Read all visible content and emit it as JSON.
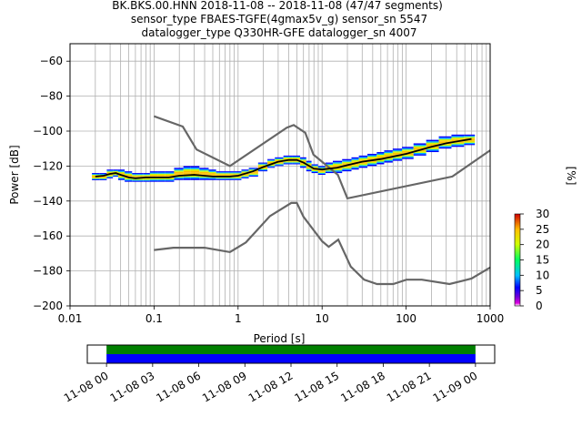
{
  "title_lines": [
    "BK.BKS.00.HNN   2018-11-08 -- 2018-11-08  (47/47 segments)",
    "sensor_type FBAES-TGFE(4gmax5v_g) sensor_sn 5547",
    "datalogger_type Q330HR-GFE datalogger_sn 4007"
  ],
  "chart_data": [
    {
      "type": "heatmap",
      "title": "BK.BKS.00.HNN   2018-11-08 -- 2018-11-08  (47/47 segments)",
      "xlabel": "Period [s]",
      "ylabel": "Power [dB]",
      "xscale": "log",
      "xlim": [
        0.01,
        1000
      ],
      "ylim": [
        -200,
        -50
      ],
      "x_tick_labels": [
        "0.01",
        "0.1",
        "1",
        "10",
        "100",
        "1000"
      ],
      "y_tick_labels": [
        "−60",
        "−80",
        "−100",
        "−120",
        "−140",
        "−160",
        "−180",
        "−200"
      ],
      "y_ticks": [
        -60,
        -80,
        -100,
        -120,
        -140,
        -160,
        -180,
        -200
      ],
      "grid": true,
      "colorbar": {
        "label": "[%]",
        "range": [
          0,
          30
        ],
        "tick_labels": [
          "0",
          "5",
          "10",
          "15",
          "20",
          "25",
          "30"
        ],
        "ticks": [
          0,
          5,
          10,
          15,
          20,
          25,
          30
        ]
      },
      "psd_bins": [
        {
          "period": 0.02,
          "median": -126,
          "low": -128,
          "high": -124
        },
        {
          "period": 0.025,
          "median": -125.5,
          "low": -128,
          "high": -124
        },
        {
          "period": 0.03,
          "median": -124.5,
          "low": -127,
          "high": -122
        },
        {
          "period": 0.035,
          "median": -124,
          "low": -126,
          "high": -122
        },
        {
          "period": 0.04,
          "median": -125,
          "low": -128,
          "high": -122
        },
        {
          "period": 0.05,
          "median": -126.5,
          "low": -129,
          "high": -123
        },
        {
          "period": 0.06,
          "median": -127,
          "low": -129,
          "high": -124
        },
        {
          "period": 0.07,
          "median": -127,
          "low": -129,
          "high": -124
        },
        {
          "period": 0.08,
          "median": -126.5,
          "low": -129,
          "high": -124
        },
        {
          "period": 0.1,
          "median": -126.5,
          "low": -129,
          "high": -123
        },
        {
          "period": 0.12,
          "median": -126.5,
          "low": -129,
          "high": -123
        },
        {
          "period": 0.15,
          "median": -126.5,
          "low": -129,
          "high": -123
        },
        {
          "period": 0.2,
          "median": -125.5,
          "low": -128,
          "high": -121
        },
        {
          "period": 0.25,
          "median": -125.5,
          "low": -128,
          "high": -120
        },
        {
          "period": 0.3,
          "median": -125,
          "low": -128,
          "high": -120
        },
        {
          "period": 0.4,
          "median": -125.5,
          "low": -128,
          "high": -121
        },
        {
          "period": 0.5,
          "median": -126,
          "low": -128,
          "high": -122
        },
        {
          "period": 0.6,
          "median": -126.5,
          "low": -128,
          "high": -123
        },
        {
          "period": 0.8,
          "median": -126,
          "low": -128,
          "high": -123
        },
        {
          "period": 1.0,
          "median": -125.5,
          "low": -128,
          "high": -123
        },
        {
          "period": 1.2,
          "median": -124.5,
          "low": -127,
          "high": -122
        },
        {
          "period": 1.5,
          "median": -123,
          "low": -126,
          "high": -121
        },
        {
          "period": 2.0,
          "median": -120.5,
          "low": -123,
          "high": -118
        },
        {
          "period": 2.5,
          "median": -119,
          "low": -121,
          "high": -116
        },
        {
          "period": 3.0,
          "median": -117.5,
          "low": -120,
          "high": -115
        },
        {
          "period": 4.0,
          "median": -116.5,
          "low": -119,
          "high": -114
        },
        {
          "period": 5.0,
          "median": -116.5,
          "low": -119,
          "high": -114
        },
        {
          "period": 6.0,
          "median": -118,
          "low": -121,
          "high": -115
        },
        {
          "period": 7.0,
          "median": -120,
          "low": -123,
          "high": -117
        },
        {
          "period": 8.0,
          "median": -121.5,
          "low": -124,
          "high": -119
        },
        {
          "period": 10.0,
          "median": -122,
          "low": -125,
          "high": -120
        },
        {
          "period": 12.0,
          "median": -121.5,
          "low": -124,
          "high": -118
        },
        {
          "period": 15.0,
          "median": -121,
          "low": -124,
          "high": -117
        },
        {
          "period": 20.0,
          "median": -119.5,
          "low": -123,
          "high": -116
        },
        {
          "period": 25.0,
          "median": -118.5,
          "low": -122,
          "high": -115
        },
        {
          "period": 30.0,
          "median": -117.5,
          "low": -121,
          "high": -114
        },
        {
          "period": 40.0,
          "median": -116.5,
          "low": -120,
          "high": -113
        },
        {
          "period": 50.0,
          "median": -116,
          "low": -119,
          "high": -112
        },
        {
          "period": 60.0,
          "median": -115,
          "low": -118,
          "high": -111
        },
        {
          "period": 80.0,
          "median": -114,
          "low": -117,
          "high": -110
        },
        {
          "period": 100.0,
          "median": -113,
          "low": -116,
          "high": -109
        },
        {
          "period": 150.0,
          "median": -111,
          "low": -114,
          "high": -107
        },
        {
          "period": 200.0,
          "median": -109,
          "low": -112,
          "high": -105
        },
        {
          "period": 300.0,
          "median": -107,
          "low": -110,
          "high": -103
        },
        {
          "period": 400.0,
          "median": -106,
          "low": -109,
          "high": -102
        },
        {
          "period": 600.0,
          "median": -104.5,
          "low": -108,
          "high": -102
        }
      ],
      "noise_models": [
        {
          "points": [
            [
              0.1,
              -91.5
            ],
            [
              0.22,
              -97.4
            ],
            [
              0.32,
              -110.5
            ],
            [
              0.8,
              -120
            ],
            [
              3.8,
              -98
            ],
            [
              4.6,
              -96.5
            ],
            [
              6.3,
              -101
            ],
            [
              7.9,
              -113.5
            ],
            [
              15.4,
              -125
            ],
            [
              20,
              -138.5
            ],
            [
              354.8,
              -126
            ],
            [
              1000,
              -111
            ]
          ]
        },
        {
          "points": [
            [
              0.1,
              -168
            ],
            [
              0.17,
              -166.7
            ],
            [
              0.4,
              -166.7
            ],
            [
              0.8,
              -169.2
            ],
            [
              1.24,
              -163.7
            ],
            [
              2.4,
              -148.6
            ],
            [
              4.3,
              -141.1
            ],
            [
              5.0,
              -141.1
            ],
            [
              6.0,
              -149
            ],
            [
              10,
              -163
            ],
            [
              12,
              -166.2
            ],
            [
              15.6,
              -162.1
            ],
            [
              21.9,
              -177.5
            ],
            [
              31.6,
              -185
            ],
            [
              45,
              -187.5
            ],
            [
              70,
              -187.5
            ],
            [
              101,
              -185
            ],
            [
              154,
              -185
            ],
            [
              328,
              -187.5
            ],
            [
              600,
              -184.4
            ],
            [
              1000,
              -178
            ]
          ]
        }
      ],
      "median_curve": [
        [
          0.02,
          -126
        ],
        [
          0.025,
          -125.5
        ],
        [
          0.03,
          -124.5
        ],
        [
          0.035,
          -124
        ],
        [
          0.04,
          -125
        ],
        [
          0.05,
          -126.5
        ],
        [
          0.06,
          -127
        ],
        [
          0.08,
          -126.5
        ],
        [
          0.1,
          -126.5
        ],
        [
          0.15,
          -126.5
        ],
        [
          0.2,
          -125.5
        ],
        [
          0.3,
          -125
        ],
        [
          0.5,
          -126
        ],
        [
          0.8,
          -126
        ],
        [
          1.0,
          -125.5
        ],
        [
          1.5,
          -123
        ],
        [
          2.0,
          -120.5
        ],
        [
          3.0,
          -117.5
        ],
        [
          4.0,
          -116.5
        ],
        [
          5.0,
          -116.5
        ],
        [
          6.0,
          -118
        ],
        [
          8.0,
          -121.5
        ],
        [
          10.0,
          -122
        ],
        [
          15.0,
          -121
        ],
        [
          20.0,
          -119.5
        ],
        [
          30.0,
          -117.5
        ],
        [
          50.0,
          -116
        ],
        [
          100.0,
          -113
        ],
        [
          200.0,
          -109
        ],
        [
          300.0,
          -107
        ],
        [
          600.0,
          -104.5
        ]
      ]
    },
    {
      "type": "table",
      "x_tick_labels": [
        "11-08 00",
        "11-08 03",
        "11-08 06",
        "11-08 09",
        "11-08 12",
        "11-08 15",
        "11-08 18",
        "11-08 21",
        "11-09 00"
      ],
      "x_ticks_hours": [
        0,
        3,
        6,
        9,
        12,
        15,
        18,
        21,
        24
      ],
      "xlim_hours": [
        -1.25,
        25.25
      ],
      "bars": [
        {
          "start_hour": 0,
          "end_hour": 24,
          "color": "#008000"
        },
        {
          "start_hour": 0,
          "end_hour": 24,
          "color": "#0000ff"
        }
      ]
    }
  ],
  "colors": {
    "median": "#000000",
    "noise_model": "#666666",
    "grid": "#b0b0b0"
  }
}
